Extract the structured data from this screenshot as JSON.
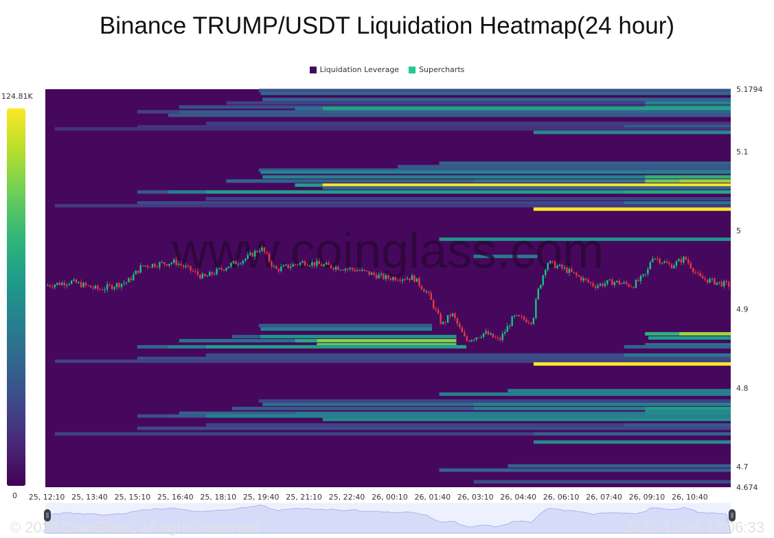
{
  "title": "Binance TRUMP/USDT Liquidation Heatmap(24 hour)",
  "legend": [
    {
      "label": "Liquidation Leverage",
      "color": "#46085c"
    },
    {
      "label": "Supercharts",
      "color": "#20c997"
    }
  ],
  "colorbar": {
    "max_label": "124.81K",
    "min_label": "0",
    "max": 124.81,
    "min": 0,
    "palette": "viridis"
  },
  "watermark": "www.coinglass.com",
  "footer": {
    "copyright": "© 2026 CoinGlass, all rights reserved",
    "timestamp": "2025-12-26 12:06:33"
  },
  "chart_data": {
    "type": "heatmap",
    "title": "Binance TRUMP/USDT Liquidation Heatmap(24 hour)",
    "x_ticks": [
      "25, 12:10",
      "25, 13:40",
      "25, 15:10",
      "25, 16:40",
      "25, 18:10",
      "25, 19:40",
      "25, 21:10",
      "25, 22:40",
      "26, 00:10",
      "26, 01:40",
      "26, 03:10",
      "26, 04:40",
      "26, 06:10",
      "26, 07:40",
      "26, 09:10",
      "26, 10:40"
    ],
    "y_ticks": [
      "5.1794",
      "5.1",
      "5",
      "4.9",
      "4.8",
      "4.7",
      "4.674"
    ],
    "ylim": [
      4.674,
      5.1794
    ],
    "xlim": [
      "25 12:07",
      "26 12:06"
    ],
    "value_unit": "K",
    "bands": [
      {
        "price": 5.1777,
        "segments": [
          {
            "from": "25 19:35",
            "value": 30
          }
        ]
      },
      {
        "price": 5.1742,
        "segments": [
          {
            "from": "25 19:39",
            "value": 42
          }
        ]
      },
      {
        "price": 5.1664,
        "segments": [
          {
            "from": "25 19:43",
            "value": 40
          }
        ]
      },
      {
        "price": 5.162,
        "segments": [
          {
            "from": "25 18:27",
            "value": 25
          },
          {
            "from": "26 09:06",
            "value": 55
          }
        ]
      },
      {
        "price": 5.1568,
        "segments": [
          {
            "from": "25 16:48",
            "value": 30
          },
          {
            "from": "26 09:06",
            "value": 60
          }
        ]
      },
      {
        "price": 5.155,
        "segments": [
          {
            "from": "25 20:51",
            "value": 45
          },
          {
            "from": "25 21:49",
            "value": 72
          }
        ]
      },
      {
        "price": 5.1507,
        "segments": [
          {
            "from": "25 15:20",
            "value": 25
          },
          {
            "from": "25 16:48",
            "value": 35
          },
          {
            "from": "25 21:49",
            "value": 40
          }
        ]
      },
      {
        "price": 5.1463,
        "segments": [
          {
            "from": "25 16:25",
            "value": 34
          }
        ]
      },
      {
        "price": 5.1359,
        "segments": [
          {
            "from": "25 17:44",
            "value": 22
          }
        ]
      },
      {
        "price": 5.1316,
        "segments": [
          {
            "from": "25 15:20",
            "value": 20
          },
          {
            "from": "26 08:22",
            "value": 40
          }
        ]
      },
      {
        "price": 5.129,
        "segments": [
          {
            "from": "25 12:27",
            "value": 18
          }
        ]
      },
      {
        "price": 5.1246,
        "segments": [
          {
            "from": "26 05:12",
            "value": 60
          }
        ]
      },
      {
        "price": 5.0854,
        "segments": [
          {
            "from": "26 01:54",
            "value": 40
          }
        ]
      },
      {
        "price": 5.0811,
        "segments": [
          {
            "from": "26 00:27",
            "value": 35
          }
        ]
      },
      {
        "price": 5.0767,
        "segments": [
          {
            "from": "25 19:35",
            "value": 35
          }
        ]
      },
      {
        "price": 5.0741,
        "segments": [
          {
            "from": "25 19:39",
            "value": 55
          }
        ]
      },
      {
        "price": 5.068,
        "segments": [
          {
            "from": "25 19:43",
            "value": 55
          },
          {
            "from": "26 09:06",
            "value": 80
          }
        ]
      },
      {
        "price": 5.0628,
        "segments": [
          {
            "from": "25 18:27",
            "value": 40
          },
          {
            "from": "26 03:06",
            "value": 50
          },
          {
            "from": "26 09:06",
            "value": 95
          },
          {
            "from": "26 10:18",
            "value": 105
          }
        ]
      },
      {
        "price": 5.0576,
        "segments": [
          {
            "from": "25 20:51",
            "value": 70
          },
          {
            "from": "25 21:49",
            "value": 124.81
          }
        ]
      },
      {
        "price": 5.0541,
        "segments": [
          {
            "from": "25 21:49",
            "value": 40
          }
        ]
      },
      {
        "price": 5.0489,
        "segments": [
          {
            "from": "25 15:20",
            "value": 35
          },
          {
            "from": "25 16:25",
            "value": 55
          },
          {
            "from": "25 17:44",
            "value": 70
          },
          {
            "from": "26 08:22",
            "value": 75
          }
        ]
      },
      {
        "price": 5.0402,
        "segments": [
          {
            "from": "25 17:44",
            "value": 25
          }
        ]
      },
      {
        "price": 5.035,
        "segments": [
          {
            "from": "25 15:20",
            "value": 28
          },
          {
            "from": "26 08:22",
            "value": 50
          }
        ]
      },
      {
        "price": 5.0315,
        "segments": [
          {
            "from": "25 12:27",
            "value": 22
          }
        ]
      },
      {
        "price": 5.0271,
        "segments": [
          {
            "from": "26 05:12",
            "value": 124.81
          }
        ]
      },
      {
        "price": 4.9889,
        "segments": [
          {
            "from": "26 01:54",
            "value": 65
          }
        ]
      },
      {
        "price": 4.9671,
        "segments": [
          {
            "from": "26 03:06",
            "value": 50,
            "to": "26 05:22"
          }
        ]
      },
      {
        "price": 4.8793,
        "segments": [
          {
            "from": "25 19:35",
            "value": 35,
            "to": "26 01:39"
          }
        ]
      },
      {
        "price": 4.8749,
        "segments": [
          {
            "from": "25 19:39",
            "value": 55,
            "to": "26 01:39"
          }
        ]
      },
      {
        "price": 4.8688,
        "segments": [
          {
            "from": "26 09:06",
            "value": 80
          },
          {
            "from": "26 10:18",
            "value": 105
          }
        ]
      },
      {
        "price": 4.8653,
        "segments": [
          {
            "from": "25 18:39",
            "value": 35
          },
          {
            "from": "25 19:39",
            "value": 65,
            "to": "26 02:30"
          }
        ]
      },
      {
        "price": 4.8636,
        "segments": [
          {
            "from": "26 09:13",
            "value": 70
          }
        ]
      },
      {
        "price": 4.8601,
        "segments": [
          {
            "from": "25 16:48",
            "value": 45
          },
          {
            "from": "25 20:51",
            "value": 75
          },
          {
            "from": "25 21:37",
            "value": 100,
            "to": "26 02:30"
          }
        ]
      },
      {
        "price": 4.8549,
        "segments": [
          {
            "from": "25 21:37",
            "value": 95,
            "to": "26 02:30"
          },
          {
            "from": "26 09:06",
            "value": 45
          }
        ]
      },
      {
        "price": 4.8523,
        "segments": [
          {
            "from": "25 15:20",
            "value": 40
          },
          {
            "from": "25 16:25",
            "value": 55
          },
          {
            "from": "25 17:44",
            "value": 70,
            "to": "26 02:51"
          },
          {
            "from": "26 08:22",
            "value": 40
          }
        ]
      },
      {
        "price": 4.8418,
        "segments": [
          {
            "from": "25 17:44",
            "value": 30
          },
          {
            "from": "26 08:22",
            "value": 50
          }
        ]
      },
      {
        "price": 4.8375,
        "segments": [
          {
            "from": "25 15:20",
            "value": 30
          }
        ]
      },
      {
        "price": 4.834,
        "segments": [
          {
            "from": "25 12:27",
            "value": 25
          }
        ]
      },
      {
        "price": 4.8305,
        "segments": [
          {
            "from": "26 05:12",
            "value": 124.81
          }
        ]
      },
      {
        "price": 4.7966,
        "segments": [
          {
            "from": "26 04:18",
            "value": 55
          }
        ]
      },
      {
        "price": 4.7922,
        "segments": [
          {
            "from": "26 01:54",
            "value": 55
          }
        ]
      },
      {
        "price": 4.7835,
        "segments": [
          {
            "from": "25 19:35",
            "value": 25
          }
        ]
      },
      {
        "price": 4.7792,
        "segments": [
          {
            "from": "25 19:43",
            "value": 45
          },
          {
            "from": "26 03:06",
            "value": 55
          }
        ]
      },
      {
        "price": 4.774,
        "segments": [
          {
            "from": "25 18:39",
            "value": 35
          },
          {
            "from": "26 03:06",
            "value": 55
          },
          {
            "from": "26 09:06",
            "value": 70
          }
        ]
      },
      {
        "price": 4.7705,
        "segments": [
          {
            "from": "26 09:06",
            "value": 60
          }
        ]
      },
      {
        "price": 4.7679,
        "segments": [
          {
            "from": "25 16:48",
            "value": 40
          },
          {
            "from": "25 20:51",
            "value": 50
          },
          {
            "from": "26 09:06",
            "value": 60
          }
        ]
      },
      {
        "price": 4.7644,
        "segments": [
          {
            "from": "25 15:20",
            "value": 30
          },
          {
            "from": "25 16:25",
            "value": 35
          },
          {
            "from": "25 17:44",
            "value": 55
          }
        ]
      },
      {
        "price": 4.7601,
        "segments": [
          {
            "from": "25 21:49",
            "value": 60
          }
        ]
      },
      {
        "price": 4.7531,
        "segments": [
          {
            "from": "25 17:44",
            "value": 25
          },
          {
            "from": "26 08:22",
            "value": 35
          }
        ]
      },
      {
        "price": 4.7488,
        "segments": [
          {
            "from": "25 15:20",
            "value": 28
          }
        ]
      },
      {
        "price": 4.7418,
        "segments": [
          {
            "from": "25 12:27",
            "value": 25
          },
          {
            "from": "26 05:12",
            "value": 38
          }
        ]
      },
      {
        "price": 4.7314,
        "segments": [
          {
            "from": "26 05:12",
            "value": 60
          }
        ]
      },
      {
        "price": 4.701,
        "segments": [
          {
            "from": "26 04:18",
            "value": 40
          }
        ]
      },
      {
        "price": 4.6957,
        "segments": [
          {
            "from": "26 01:54",
            "value": 40
          }
        ]
      },
      {
        "price": 4.6809,
        "segments": [
          {
            "from": "26 03:06",
            "value": 30
          }
        ]
      }
    ],
    "price_path": [
      [
        "25 12:07",
        4.93
      ],
      [
        "25 13:00",
        4.935
      ],
      [
        "25 14:00",
        4.925
      ],
      [
        "25 15:00",
        4.935
      ],
      [
        "25 15:30",
        4.955
      ],
      [
        "25 16:40",
        4.96
      ],
      [
        "25 17:40",
        4.94
      ],
      [
        "25 18:30",
        4.955
      ],
      [
        "25 19:10",
        4.965
      ],
      [
        "25 19:40",
        4.978
      ],
      [
        "25 20:10",
        4.95
      ],
      [
        "25 21:10",
        4.96
      ],
      [
        "25 22:00",
        4.955
      ],
      [
        "25 23:00",
        4.95
      ],
      [
        "26 00:00",
        4.94
      ],
      [
        "26 01:00",
        4.94
      ],
      [
        "26 01:30",
        4.92
      ],
      [
        "26 02:00",
        4.88
      ],
      [
        "26 02:20",
        4.895
      ],
      [
        "26 02:50",
        4.86
      ],
      [
        "26 03:30",
        4.87
      ],
      [
        "26 04:00",
        4.86
      ],
      [
        "26 04:30",
        4.89
      ],
      [
        "26 05:10",
        4.885
      ],
      [
        "26 05:20",
        4.92
      ],
      [
        "26 05:40",
        4.96
      ],
      [
        "26 06:20",
        4.95
      ],
      [
        "26 06:50",
        4.94
      ],
      [
        "26 07:20",
        4.93
      ],
      [
        "26 08:00",
        4.935
      ],
      [
        "26 08:40",
        4.93
      ],
      [
        "26 09:10",
        4.945
      ],
      [
        "26 09:20",
        4.968
      ],
      [
        "26 10:00",
        4.955
      ],
      [
        "26 10:30",
        4.965
      ],
      [
        "26 11:00",
        4.94
      ],
      [
        "26 11:30",
        4.935
      ],
      [
        "26 12:06",
        4.93
      ]
    ],
    "candle_colors": {
      "up": "#16c784",
      "down": "#ea3943"
    },
    "background_color": "#46085c"
  }
}
